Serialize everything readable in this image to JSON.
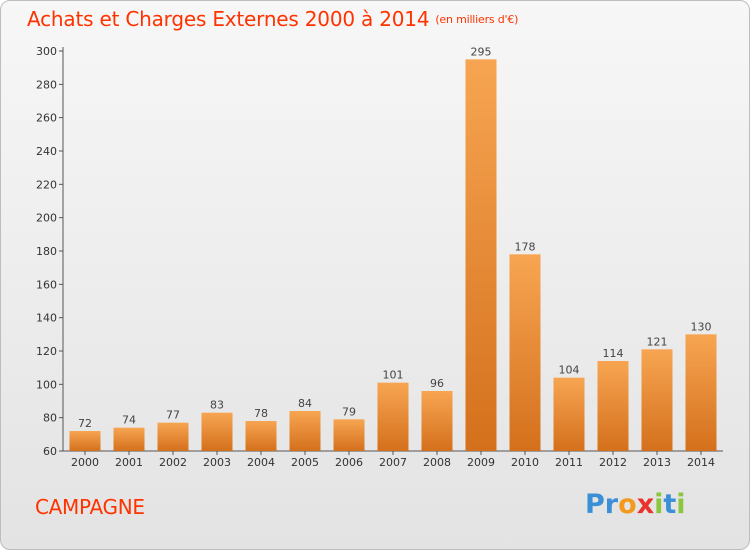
{
  "chart_data": {
    "type": "bar",
    "title": "Achats et Charges Externes 2000 à 2014",
    "subtitle": "(en milliers d'€)",
    "categories": [
      "2000",
      "2001",
      "2002",
      "2003",
      "2004",
      "2005",
      "2006",
      "2007",
      "2008",
      "2009",
      "2010",
      "2011",
      "2012",
      "2013",
      "2014"
    ],
    "values": [
      72,
      74,
      77,
      83,
      78,
      84,
      79,
      101,
      96,
      295,
      178,
      104,
      114,
      121,
      130
    ],
    "ylim": [
      60,
      300
    ],
    "yticks": [
      60,
      80,
      100,
      120,
      140,
      160,
      180,
      200,
      220,
      240,
      260,
      280,
      300
    ],
    "xlabel": "",
    "ylabel": "",
    "grid": false,
    "bar_color": "#f08c2d",
    "label_color": "#444444"
  },
  "place_name": "CAMPAGNE",
  "logo": {
    "text": "Proxiti",
    "letters": [
      {
        "ch": "P",
        "color": "#3a8fd6"
      },
      {
        "ch": "r",
        "color": "#3a8fd6"
      },
      {
        "ch": "o",
        "color": "#f39a1e"
      },
      {
        "ch": "x",
        "color": "#e8322b"
      },
      {
        "ch": "i",
        "color": "#8cc63f"
      },
      {
        "ch": "t",
        "color": "#3a8fd6"
      },
      {
        "ch": "i",
        "color": "#8cc63f"
      }
    ]
  },
  "colors": {
    "title": "#ff3300",
    "place": "#ff3300",
    "axis": "#555555"
  }
}
